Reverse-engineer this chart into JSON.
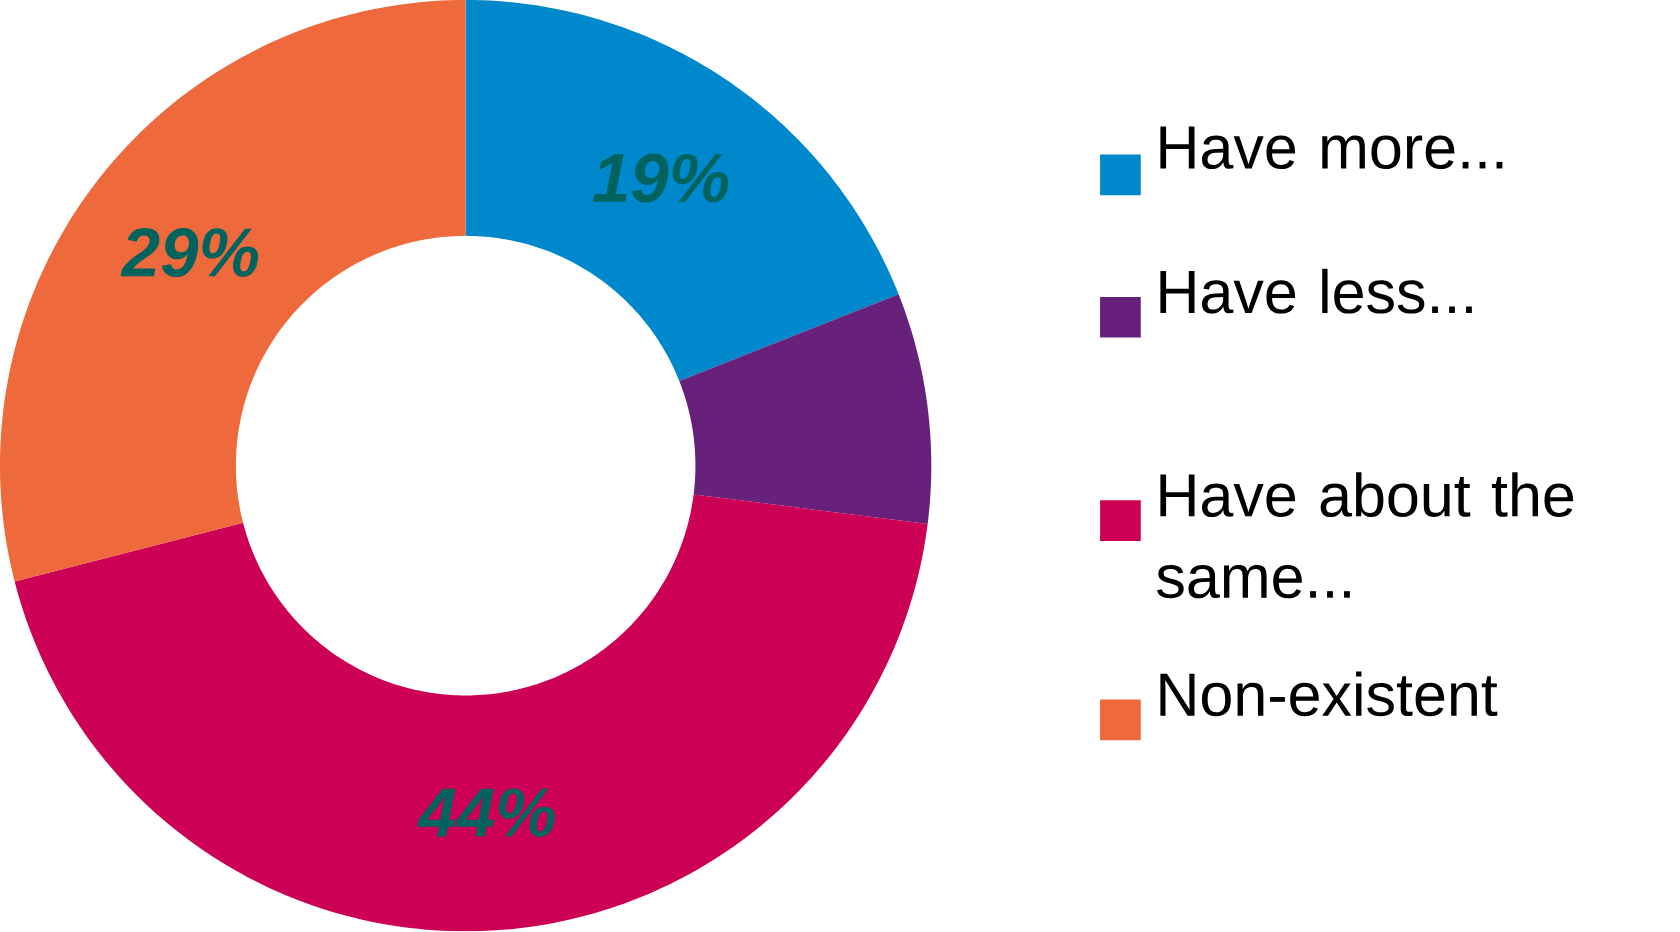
{
  "chart_data": {
    "type": "donut",
    "categories": [
      "Have more...",
      "Have less...",
      "Have about the same...",
      "Non-existent"
    ],
    "values": [
      19,
      8,
      44,
      29
    ],
    "colors": [
      "#0088cc",
      "#68217a",
      "#cc0055",
      "#ee6a3c"
    ],
    "value_labels": [
      "19%",
      null,
      "44%",
      "29%"
    ],
    "legend": "right"
  }
}
